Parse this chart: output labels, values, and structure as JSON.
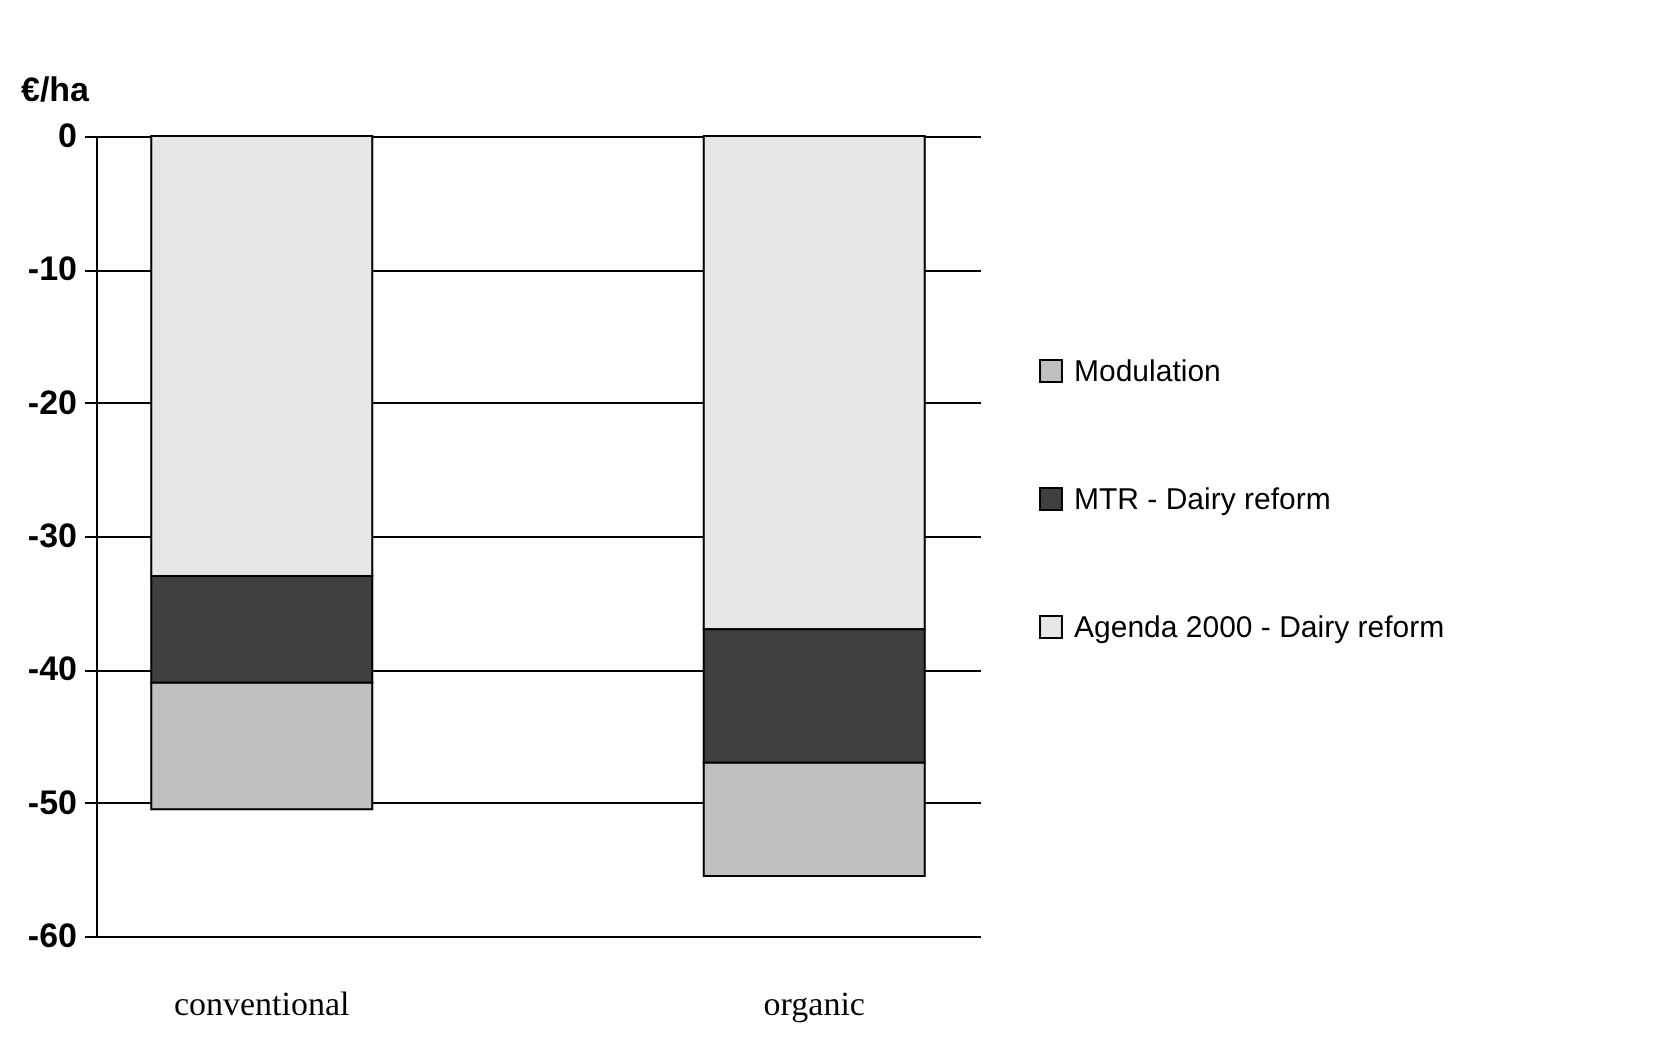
{
  "chart_data": {
    "type": "bar",
    "stacked": true,
    "ylabel": "€/ha",
    "categories": [
      "conventional",
      "organic"
    ],
    "series": [
      {
        "name": "Agenda 2000 - Dairy reform",
        "color": "#e6e6e6",
        "values": [
          -33,
          -37
        ]
      },
      {
        "name": "MTR - Dairy reform",
        "color": "#404040",
        "values": [
          -8,
          -10
        ]
      },
      {
        "name": "Modulation",
        "color": "#c0c0c0",
        "values": [
          -9.5,
          -8.5
        ]
      }
    ],
    "ylim": [
      -60,
      0
    ],
    "yticks": [
      0,
      -10,
      -20,
      -30,
      -40,
      -50,
      -60
    ],
    "grid": "y",
    "legend": "right"
  }
}
